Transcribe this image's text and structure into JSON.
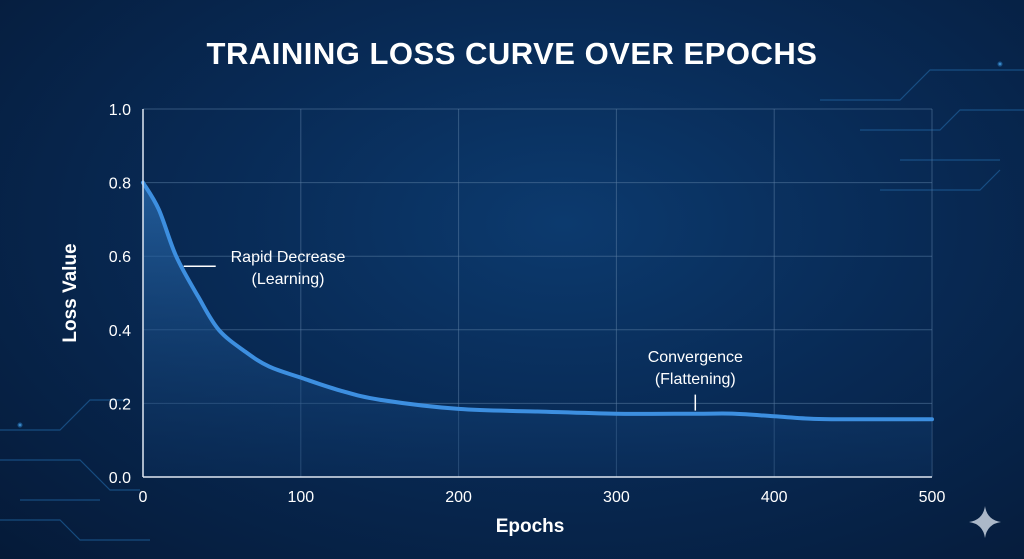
{
  "chart_data": {
    "type": "area",
    "title": "TRAINING LOSS CURVE OVER EPOCHS",
    "xlabel": "Epochs",
    "ylabel": "Loss Value",
    "xlim": [
      0,
      500
    ],
    "ylim": [
      0.0,
      1.0
    ],
    "xticks": [
      "0",
      "100",
      "200",
      "300",
      "400",
      "500"
    ],
    "yticks": [
      "0.0",
      "0.2",
      "0.4",
      "0.6",
      "0.8",
      "1.0"
    ],
    "grid": true,
    "x": [
      0,
      10,
      21,
      35,
      48,
      65,
      80,
      100,
      125,
      150,
      200,
      250,
      300,
      350,
      375,
      400,
      425,
      450,
      500
    ],
    "y": [
      0.8,
      0.727,
      0.6,
      0.49,
      0.4,
      0.34,
      0.3,
      0.27,
      0.235,
      0.21,
      0.185,
      0.178,
      0.172,
      0.172,
      0.172,
      0.165,
      0.158,
      0.157,
      0.157
    ],
    "annotations": [
      {
        "line1": "Rapid Decrease",
        "line2": "(Learning)",
        "x": 22,
        "y": 0.6
      },
      {
        "line1": "Convergence",
        "line2": "(Flattening)",
        "x": 350,
        "y": 0.175
      }
    ],
    "colors": {
      "line": "#3d8fe0",
      "fill": "#1d5a9a",
      "grid": "#5a7ba3",
      "text": "#ffffff"
    }
  }
}
